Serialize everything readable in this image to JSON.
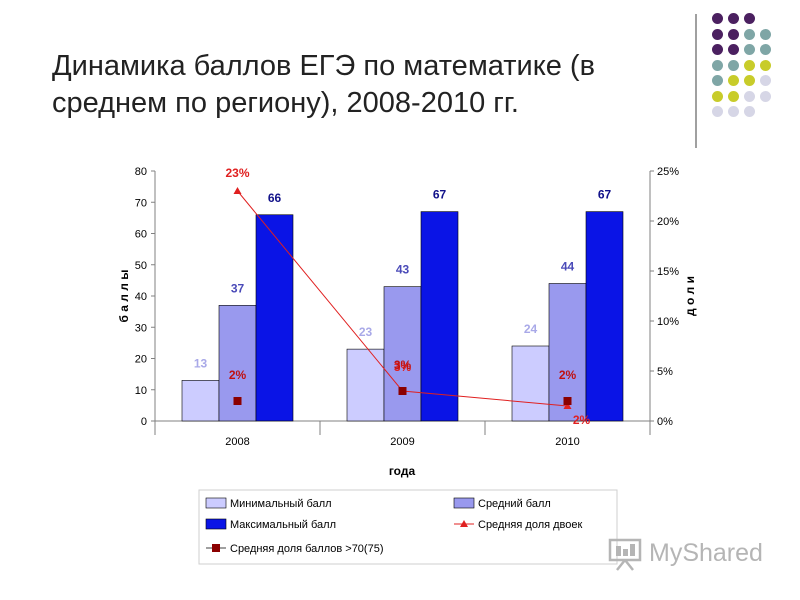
{
  "slide": {
    "title": "Динамика баллов ЕГЭ по математике (в среднем по региону), 2008-2010 гг."
  },
  "decoration": {
    "dot_colors": [
      "#4b2060",
      "#7fa6a6",
      "#c8cc2a",
      "#d6d6e6"
    ]
  },
  "watermark": {
    "text": "MyShared",
    "icon": "presentation-board-icon"
  },
  "chart_data": {
    "type": "bar",
    "categories": [
      "2008",
      "2009",
      "2010"
    ],
    "xlabel": "года",
    "ylabel": "б а л л ы",
    "y2label": "д о л и",
    "ylim": [
      0,
      80
    ],
    "yticks": [
      "0",
      "10",
      "20",
      "30",
      "40",
      "50",
      "60",
      "70",
      "80"
    ],
    "y2lim": [
      0,
      25
    ],
    "y2ticks": [
      "0%",
      "5%",
      "10%",
      "15%",
      "20%",
      "25%"
    ],
    "legend_position": "bottom",
    "series": [
      {
        "name": "Минимальный балл",
        "kind": "bar",
        "values": [
          13,
          23,
          24
        ],
        "labels": [
          "13",
          "23",
          "24"
        ],
        "color": "#ccccff",
        "label_color": "#a9a9e8"
      },
      {
        "name": "Средний балл",
        "kind": "bar",
        "values": [
          37,
          43,
          44
        ],
        "labels": [
          "37",
          "43",
          "44"
        ],
        "color": "#9999ee",
        "label_color": "#4a4ab8"
      },
      {
        "name": "Максимальный балл",
        "kind": "bar",
        "values": [
          66,
          67,
          67
        ],
        "labels": [
          "66",
          "67",
          "67"
        ],
        "color": "#0a14e6",
        "label_color": "#12128a"
      },
      {
        "name": "Средняя доля двоек",
        "kind": "line",
        "axis": "right",
        "values": [
          23,
          3,
          1.5
        ],
        "labels": [
          "23%",
          "3%",
          "2%"
        ],
        "color": "#e02020"
      },
      {
        "name": "Средняя доля баллов >70(75)",
        "kind": "marker",
        "axis": "right",
        "values": [
          2,
          3,
          2
        ],
        "labels": [
          "2%",
          "3%",
          "2%"
        ],
        "color": "#8b0000"
      }
    ]
  }
}
